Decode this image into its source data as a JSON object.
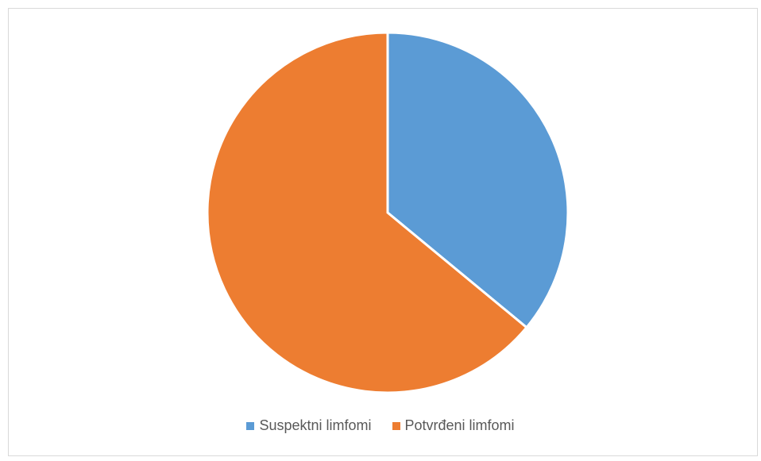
{
  "chart_data": {
    "type": "pie",
    "series": [
      {
        "labels": [
          "Suspektni limfomi",
          "Potvrđeni limfomi"
        ],
        "values": [
          36,
          64
        ]
      }
    ],
    "colors": [
      "#5B9BD5",
      "#ED7D31"
    ],
    "legend_position": "bottom",
    "start_angle": "12 o'clock, clockwise"
  },
  "legend": {
    "items": [
      {
        "label": "Suspektni limfomi",
        "color": "#5B9BD5"
      },
      {
        "label": "Potvrđeni limfomi",
        "color": "#ED7D31"
      }
    ]
  }
}
